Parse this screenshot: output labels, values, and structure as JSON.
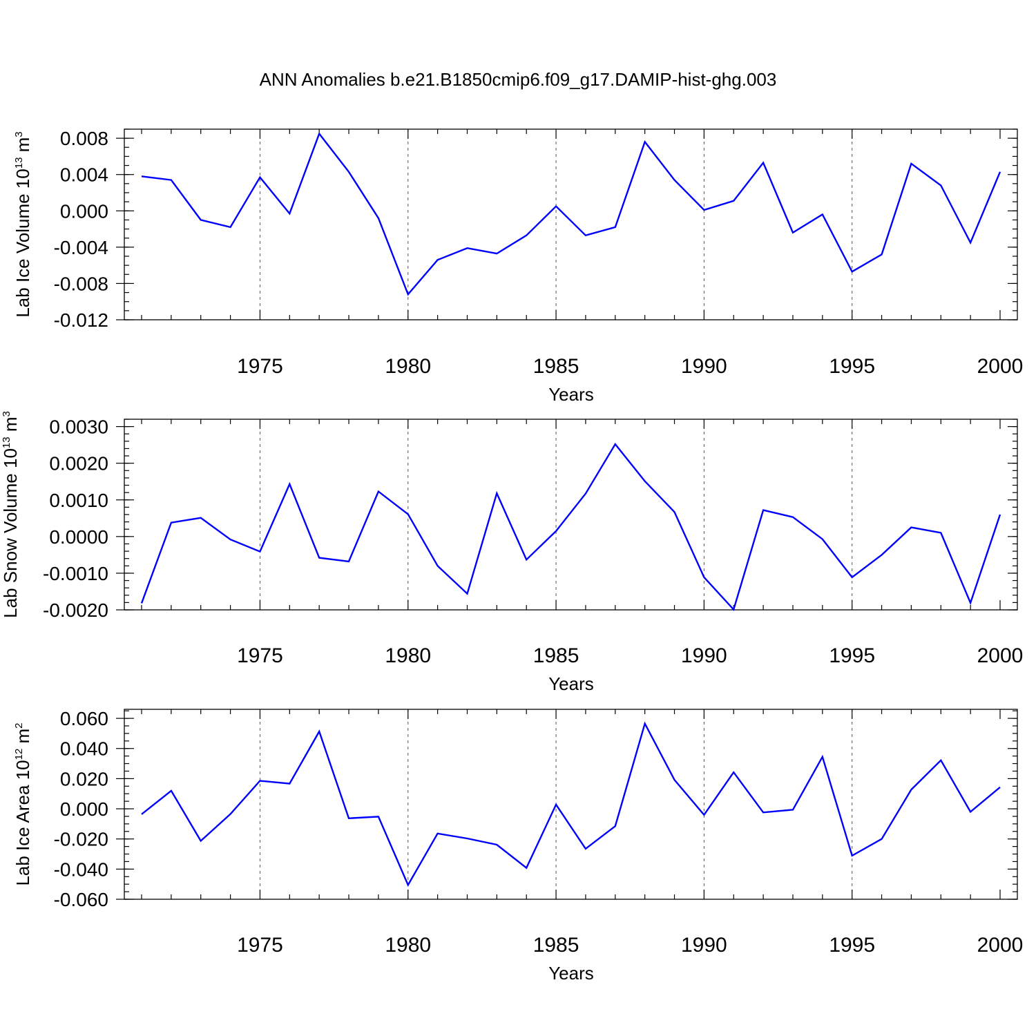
{
  "title": "ANN Anomalies b.e21.B1850cmip6.f09_g17.DAMIP-hist-ghg.003",
  "colors": {
    "line": "#0000ff",
    "axis": "#000000",
    "grid": "#555555"
  },
  "chart_data": [
    {
      "type": "line",
      "ylabel": {
        "main": "Lab Ice Volume 10",
        "exp": "13",
        "unit": " m",
        "unit_exp": "3"
      },
      "xlabel": "Years",
      "xlim": [
        1971,
        2000
      ],
      "ylim": [
        -0.012,
        0.009
      ],
      "xticks": [
        "1975",
        "1980",
        "1985",
        "1990",
        "1995",
        "2000"
      ],
      "yticks": [
        {
          "value": 0.008,
          "label": "0.008"
        },
        {
          "value": 0.004,
          "label": "0.004"
        },
        {
          "value": 0.0,
          "label": "0.000"
        },
        {
          "value": -0.004,
          "label": "-0.004"
        },
        {
          "value": -0.008,
          "label": "-0.008"
        },
        {
          "value": -0.012,
          "label": "-0.012"
        }
      ],
      "minor_y_step": 0.001,
      "x": [
        1971,
        1972,
        1973,
        1974,
        1975,
        1976,
        1977,
        1978,
        1979,
        1980,
        1981,
        1982,
        1983,
        1984,
        1985,
        1986,
        1987,
        1988,
        1989,
        1990,
        1991,
        1992,
        1993,
        1994,
        1995,
        1996,
        1997,
        1998,
        1999,
        2000
      ],
      "values": [
        0.0038,
        0.0034,
        -0.001,
        -0.0018,
        0.0037,
        -0.0003,
        0.0085,
        0.0043,
        -0.0008,
        -0.0092,
        -0.0054,
        -0.0041,
        -0.0047,
        -0.0027,
        0.0005,
        -0.0027,
        -0.0018,
        0.0076,
        0.0034,
        0.0001,
        0.0011,
        0.0053,
        -0.0024,
        -0.0004,
        -0.0067,
        -0.0048,
        0.0052,
        0.0028,
        -0.0035,
        0.0043
      ]
    },
    {
      "type": "line",
      "ylabel": {
        "main": "Lab Snow Volume 10",
        "exp": "13",
        "unit": " m",
        "unit_exp": "3"
      },
      "xlabel": "Years",
      "xlim": [
        1971,
        2000
      ],
      "ylim": [
        -0.002,
        0.0032
      ],
      "xticks": [
        "1975",
        "1980",
        "1985",
        "1990",
        "1995",
        "2000"
      ],
      "yticks": [
        {
          "value": 0.003,
          "label": "0.0030"
        },
        {
          "value": 0.002,
          "label": "0.0020"
        },
        {
          "value": 0.001,
          "label": "0.0010"
        },
        {
          "value": 0.0,
          "label": "0.0000"
        },
        {
          "value": -0.001,
          "label": "-0.0010"
        },
        {
          "value": -0.002,
          "label": "-0.0020"
        }
      ],
      "minor_y_step": 0.0002,
      "x": [
        1971,
        1972,
        1973,
        1974,
        1975,
        1976,
        1977,
        1978,
        1979,
        1980,
        1981,
        1982,
        1983,
        1984,
        1985,
        1986,
        1987,
        1988,
        1989,
        1990,
        1991,
        1992,
        1993,
        1994,
        1995,
        1996,
        1997,
        1998,
        1999,
        2000
      ],
      "values": [
        -0.00182,
        0.00038,
        0.00051,
        -8e-05,
        -0.00041,
        0.00143,
        -0.00058,
        -0.00068,
        0.00123,
        0.00061,
        -0.0008,
        -0.00156,
        0.00118,
        -0.00063,
        0.00015,
        0.00117,
        0.00252,
        0.00151,
        0.00067,
        -0.00111,
        -0.00199,
        0.00072,
        0.00053,
        -7e-05,
        -0.00111,
        -0.0005,
        0.00025,
        0.0001,
        -0.00181,
        0.0006
      ]
    },
    {
      "type": "line",
      "ylabel": {
        "main": "Lab Ice Area 10",
        "exp": "12",
        "unit": " m",
        "unit_exp": "2"
      },
      "xlabel": "Years",
      "xlim": [
        1971,
        2000
      ],
      "ylim": [
        -0.06,
        0.066
      ],
      "xticks": [
        "1975",
        "1980",
        "1985",
        "1990",
        "1995",
        "2000"
      ],
      "yticks": [
        {
          "value": 0.06,
          "label": "0.060"
        },
        {
          "value": 0.04,
          "label": "0.040"
        },
        {
          "value": 0.02,
          "label": "0.020"
        },
        {
          "value": 0.0,
          "label": "0.000"
        },
        {
          "value": -0.02,
          "label": "-0.020"
        },
        {
          "value": -0.04,
          "label": "-0.040"
        },
        {
          "value": -0.06,
          "label": "-0.060"
        }
      ],
      "minor_y_step": 0.005,
      "x": [
        1971,
        1972,
        1973,
        1974,
        1975,
        1976,
        1977,
        1978,
        1979,
        1980,
        1981,
        1982,
        1983,
        1984,
        1985,
        1986,
        1987,
        1988,
        1989,
        1990,
        1991,
        1992,
        1993,
        1994,
        1995,
        1996,
        1997,
        1998,
        1999,
        2000
      ],
      "values": [
        -0.0036,
        0.012,
        -0.0213,
        -0.0035,
        0.0186,
        0.0167,
        0.0513,
        -0.0063,
        -0.0052,
        -0.0505,
        -0.0164,
        -0.0197,
        -0.0238,
        -0.0392,
        0.0028,
        -0.0265,
        -0.0115,
        0.0565,
        0.0192,
        -0.004,
        0.0242,
        -0.0024,
        -0.0006,
        0.0345,
        -0.0311,
        -0.02,
        0.0127,
        0.0322,
        -0.002,
        0.0143
      ]
    }
  ]
}
